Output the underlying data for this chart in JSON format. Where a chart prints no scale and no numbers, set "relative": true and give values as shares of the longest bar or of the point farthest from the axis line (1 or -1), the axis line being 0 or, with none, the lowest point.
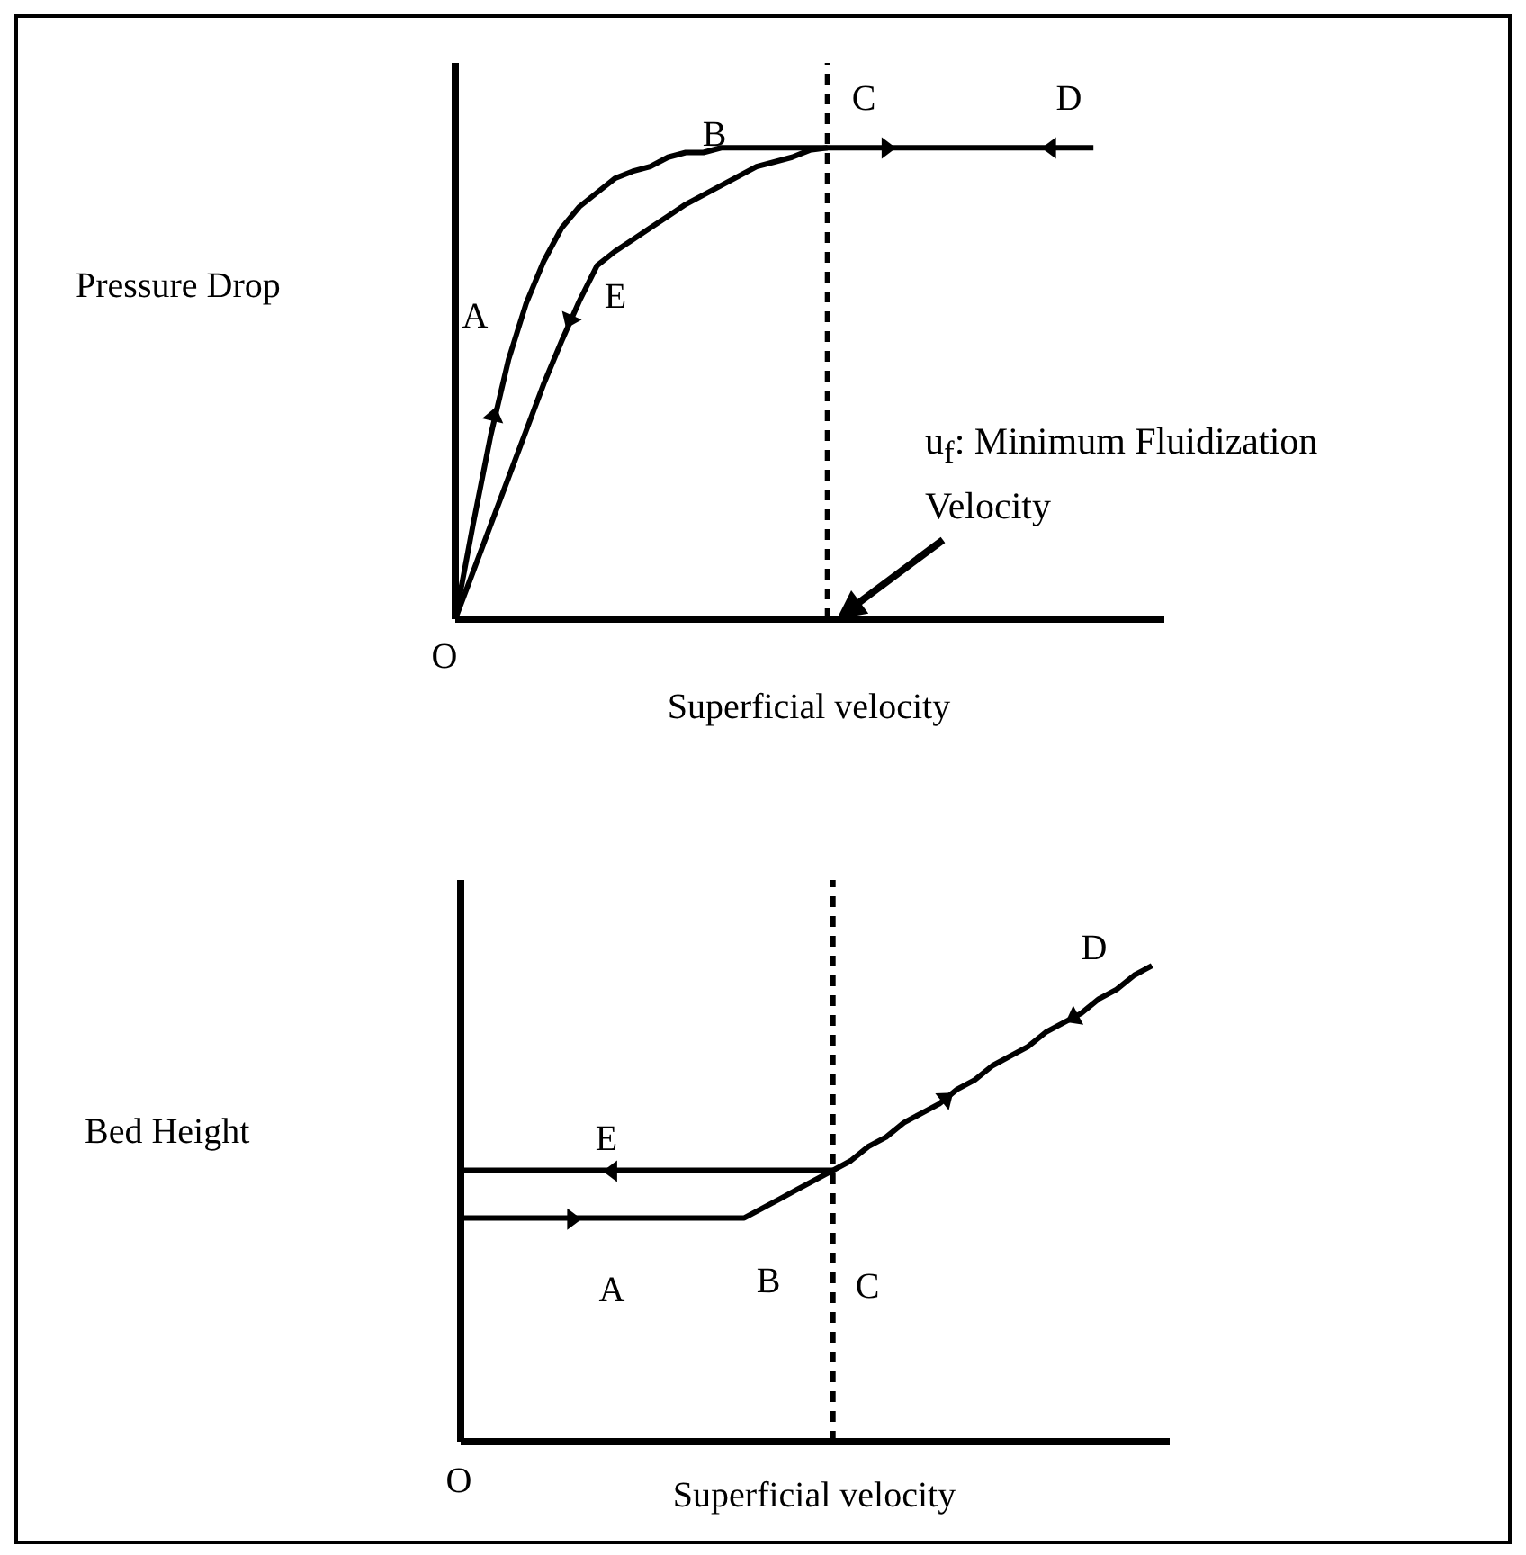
{
  "chart_data": [
    {
      "type": "line",
      "relative": true,
      "marker": "none",
      "ylabel": "Pressure Drop",
      "xlabel": "Superficial velocity",
      "categories": [
        null,
        null,
        null,
        null,
        null,
        null,
        null,
        null,
        null,
        null,
        null,
        null,
        null,
        null,
        null,
        null,
        null,
        null,
        null,
        null,
        null,
        null,
        null,
        null,
        null,
        null,
        null,
        null,
        null,
        null,
        null,
        null,
        null,
        null,
        null,
        null,
        null,
        null,
        null,
        null,
        null
      ],
      "series": [
        {
          "color": "#000000",
          "values": [
            0,
            0.2,
            0.39,
            0.55,
            0.67,
            0.76,
            0.83,
            0.875,
            0.905,
            0.935,
            0.95,
            0.96,
            0.98,
            0.99,
            0.99,
            1,
            1,
            1,
            1,
            1,
            1,
            1,
            1,
            1,
            1,
            1,
            1,
            1,
            1,
            1,
            1,
            1,
            1,
            1,
            1,
            1,
            1,
            null,
            null,
            null,
            null
          ]
        },
        {
          "color": "#000000",
          "values": [
            0,
            0.1,
            0.2,
            0.3,
            0.4,
            0.5,
            0.59,
            0.675,
            0.75,
            0.78,
            0.805,
            0.83,
            0.855,
            0.88,
            0.9,
            0.92,
            0.94,
            0.96,
            0.97,
            0.98,
            0.995,
            1,
            null,
            null,
            null,
            null,
            null,
            null,
            null,
            null,
            null,
            null,
            null,
            null,
            null,
            null,
            null,
            null,
            null,
            null,
            null
          ]
        }
      ],
      "annotations": [
        "A",
        "B",
        "C",
        "D",
        "E",
        "O",
        "u$_{f}$: Minimum Fluidization Velocity"
      ]
    },
    {
      "type": "line",
      "relative": true,
      "marker": "none",
      "ylabel": "Bed Height",
      "xlabel": "Superficial velocity",
      "categories": [
        null,
        null,
        null,
        null,
        null,
        null,
        null,
        null,
        null,
        null,
        null,
        null,
        null,
        null,
        null,
        null,
        null,
        null,
        null,
        null,
        null,
        null,
        null,
        null,
        null,
        null,
        null,
        null,
        null,
        null,
        null,
        null,
        null,
        null,
        null,
        null,
        null,
        null,
        null,
        null,
        null
      ],
      "series": [
        {
          "color": "#000000",
          "values": [
            0.47,
            0.47,
            0.47,
            0.47,
            0.47,
            0.47,
            0.47,
            0.47,
            0.47,
            0.47,
            0.47,
            0.47,
            0.47,
            0.47,
            0.47,
            0.47,
            0.47,
            0.49,
            0.51,
            0.53,
            0.55,
            0.57,
            0.59,
            0.62,
            0.64,
            0.67,
            0.69,
            0.71,
            0.74,
            0.76,
            0.79,
            0.81,
            0.83,
            0.86,
            0.88,
            0.9,
            0.93,
            0.95,
            0.98,
            1,
            null
          ]
        },
        {
          "color": "#000000",
          "values": [
            0.57,
            0.57,
            0.57,
            0.57,
            0.57,
            0.57,
            0.57,
            0.57,
            0.57,
            0.57,
            0.57,
            0.57,
            0.57,
            0.57,
            0.57,
            0.57,
            0.57,
            0.57,
            0.57,
            0.57,
            0.57,
            0.57,
            null,
            null,
            null,
            null,
            null,
            null,
            null,
            null,
            null,
            null,
            null,
            null,
            null,
            null,
            null,
            null,
            null,
            null,
            null
          ]
        }
      ],
      "annotations": [
        "E",
        "A",
        "B",
        "C",
        "D",
        "O"
      ]
    }
  ]
}
